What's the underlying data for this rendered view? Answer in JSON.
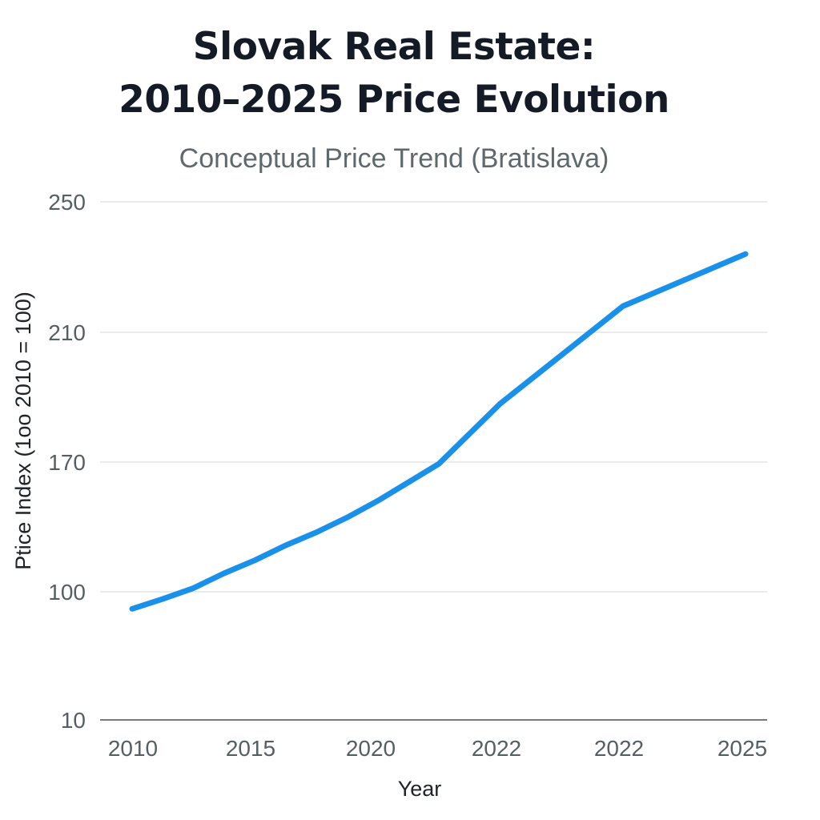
{
  "chart_data": {
    "type": "line",
    "title_lines": [
      "Slovak Real Estate:",
      "2010–2025 Price Evolution"
    ],
    "subtitle": "Conceptual Price Trend (Bratislava)",
    "xlabel": "Year",
    "ylabel": "Ptice Index (1oo  2010  =  100)",
    "categories": [
      "2010",
      "2015",
      "2020",
      "2022",
      "2022",
      "2025"
    ],
    "y_tick_labels": [
      "10",
      "100",
      "170",
      "210",
      "250"
    ],
    "series": [
      {
        "color": "#1990ea",
        "x": [
          0,
          0.25,
          0.5,
          0.75,
          1,
          1.25,
          1.5,
          1.75,
          2,
          2.5,
          3,
          3.5,
          4,
          4.5,
          5
        ],
        "values": [
          88,
          95,
          102,
          110,
          117,
          125,
          132,
          140,
          149,
          169,
          188,
          203,
          218,
          226,
          234
        ]
      }
    ],
    "ylim": [
      10,
      250
    ],
    "grid": true,
    "legend": "none"
  }
}
